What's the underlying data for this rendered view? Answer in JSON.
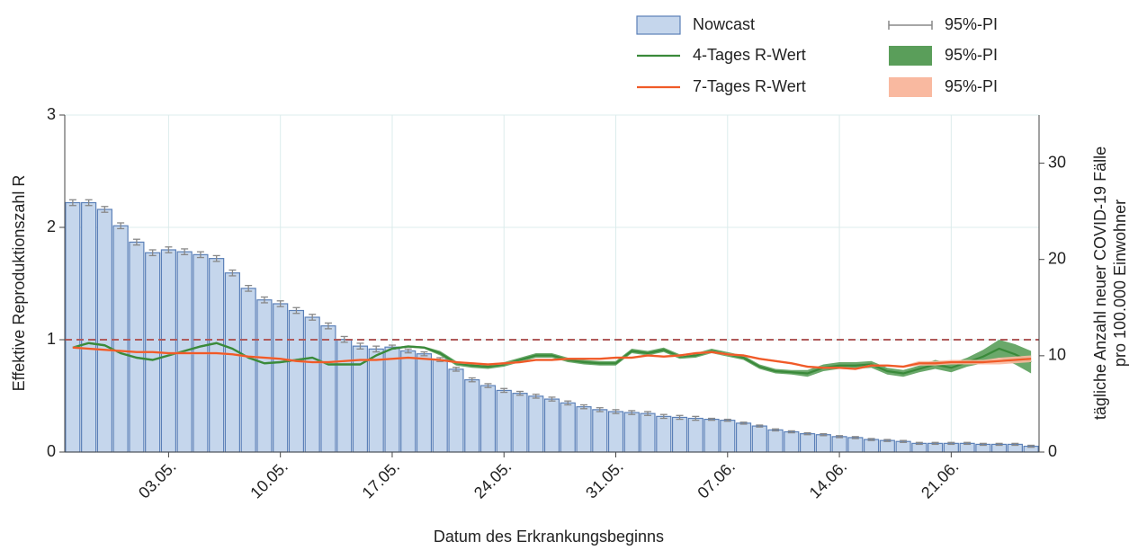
{
  "chart_data": {
    "type": "bar",
    "xlabel": "Datum des Erkrankungsbeginns",
    "ylabel": "Effektive Reproduktionszahl R",
    "y2label": [
      "tägliche Anzahl neuer COVID-19 Fälle",
      "pro 100.000 Einwohner"
    ],
    "categories": [
      null,
      null,
      null,
      null,
      null,
      null,
      "03.05.",
      null,
      null,
      null,
      null,
      null,
      null,
      "10.05.",
      null,
      null,
      null,
      null,
      null,
      null,
      "17.05.",
      null,
      null,
      null,
      null,
      null,
      null,
      "24.05.",
      null,
      null,
      null,
      null,
      null,
      null,
      "31.05.",
      null,
      null,
      null,
      null,
      null,
      null,
      "07.06.",
      null,
      null,
      null,
      null,
      null,
      null,
      "14.06.",
      null,
      null,
      null,
      null,
      null,
      null,
      "21.06.",
      null,
      null,
      null,
      null,
      null
    ],
    "ylim": [
      0,
      3
    ],
    "yticks": [
      0,
      1,
      2,
      3
    ],
    "y2lim": [
      0,
      35
    ],
    "y2ticks": [
      0,
      10,
      20,
      30
    ],
    "grid": true,
    "hline": {
      "value": 1,
      "color": "#b05a5a"
    },
    "series": [
      {
        "name": "Nowcast",
        "type": "bar",
        "axis": "y2",
        "color": "#c5d6ec",
        "edge": "#5b80b8",
        "values": [
          25.9,
          25.9,
          25.2,
          23.5,
          21.8,
          20.7,
          21.0,
          20.8,
          20.5,
          20.1,
          18.6,
          17.0,
          15.8,
          15.4,
          14.7,
          14.0,
          13.1,
          11.7,
          11.0,
          10.7,
          10.9,
          10.5,
          10.2,
          9.6,
          8.6,
          7.5,
          6.9,
          6.4,
          6.1,
          5.8,
          5.5,
          5.1,
          4.7,
          4.4,
          4.2,
          4.1,
          4.0,
          3.7,
          3.6,
          3.5,
          3.4,
          3.3,
          3.0,
          2.7,
          2.3,
          2.1,
          1.9,
          1.8,
          1.6,
          1.5,
          1.3,
          1.2,
          1.1,
          0.9,
          0.9,
          0.9,
          0.9,
          0.8,
          0.8,
          0.8,
          0.6
        ],
        "errors": [
          0.3,
          0.3,
          0.3,
          0.3,
          0.3,
          0.3,
          0.3,
          0.3,
          0.3,
          0.3,
          0.3,
          0.3,
          0.3,
          0.3,
          0.3,
          0.3,
          0.3,
          0.3,
          0.3,
          0.3,
          0.2,
          0.2,
          0.2,
          0.2,
          0.2,
          0.2,
          0.2,
          0.2,
          0.2,
          0.2,
          0.2,
          0.2,
          0.2,
          0.2,
          0.2,
          0.2,
          0.2,
          0.2,
          0.2,
          0.2,
          0.1,
          0.1,
          0.1,
          0.1,
          0.1,
          0.1,
          0.1,
          0.1,
          0.1,
          0.1,
          0.1,
          0.1,
          0.1,
          0.1,
          0.1,
          0.1,
          0.1,
          0.1,
          0.1,
          0.1,
          0.1
        ],
        "error_name": "95%-PI",
        "error_color": "#888888"
      },
      {
        "name": "4-Tages R-Wert",
        "type": "line",
        "color": "#3a8a3a",
        "values": [
          0.93,
          0.97,
          0.95,
          0.88,
          0.84,
          0.82,
          0.86,
          0.9,
          0.94,
          0.97,
          0.92,
          0.84,
          0.79,
          0.8,
          0.82,
          0.84,
          0.78,
          0.78,
          0.78,
          0.86,
          0.92,
          0.94,
          0.93,
          0.88,
          0.79,
          0.77,
          0.76,
          0.78,
          0.82,
          0.86,
          0.86,
          0.82,
          0.8,
          0.79,
          0.79,
          0.9,
          0.88,
          0.91,
          0.85,
          0.86,
          0.9,
          0.87,
          0.84,
          0.76,
          0.72,
          0.71,
          0.7,
          0.75,
          0.77,
          0.77,
          0.78,
          0.72,
          0.7,
          0.74,
          0.78,
          0.75,
          0.8,
          0.85,
          0.92,
          0.87,
          0.8
        ],
        "pi": [
          0.01,
          0.01,
          0.01,
          0.01,
          0.01,
          0.01,
          0.01,
          0.01,
          0.01,
          0.01,
          0.01,
          0.01,
          0.01,
          0.01,
          0.01,
          0.01,
          0.01,
          0.01,
          0.01,
          0.01,
          0.01,
          0.01,
          0.01,
          0.02,
          0.02,
          0.02,
          0.02,
          0.02,
          0.02,
          0.02,
          0.02,
          0.02,
          0.02,
          0.02,
          0.02,
          0.02,
          0.02,
          0.02,
          0.02,
          0.02,
          0.02,
          0.02,
          0.02,
          0.02,
          0.02,
          0.02,
          0.03,
          0.03,
          0.03,
          0.03,
          0.03,
          0.03,
          0.03,
          0.03,
          0.04,
          0.04,
          0.04,
          0.06,
          0.08,
          0.09,
          0.1
        ],
        "pi_name": "95%-PI",
        "pi_color": "#5a9e5a"
      },
      {
        "name": "7-Tages R-Wert",
        "type": "line",
        "color": "#f05a28",
        "values": [
          0.93,
          0.92,
          0.91,
          0.9,
          0.89,
          0.89,
          0.88,
          0.88,
          0.88,
          0.88,
          0.87,
          0.85,
          0.84,
          0.83,
          0.81,
          0.8,
          0.8,
          0.81,
          0.82,
          0.82,
          0.83,
          0.84,
          0.83,
          0.82,
          0.8,
          0.79,
          0.78,
          0.79,
          0.8,
          0.82,
          0.82,
          0.83,
          0.83,
          0.83,
          0.84,
          0.84,
          0.86,
          0.85,
          0.86,
          0.88,
          0.89,
          0.87,
          0.86,
          0.83,
          0.81,
          0.79,
          0.76,
          0.75,
          0.75,
          0.74,
          0.77,
          0.77,
          0.76,
          0.79,
          0.79,
          0.8,
          0.8,
          0.8,
          0.81,
          0.82,
          0.83
        ],
        "pi": [
          0.01,
          0.01,
          0.01,
          0.01,
          0.01,
          0.01,
          0.01,
          0.01,
          0.01,
          0.01,
          0.01,
          0.01,
          0.01,
          0.01,
          0.01,
          0.01,
          0.01,
          0.01,
          0.01,
          0.01,
          0.01,
          0.01,
          0.01,
          0.01,
          0.01,
          0.01,
          0.01,
          0.01,
          0.01,
          0.01,
          0.01,
          0.01,
          0.01,
          0.01,
          0.01,
          0.01,
          0.01,
          0.01,
          0.01,
          0.01,
          0.01,
          0.01,
          0.01,
          0.01,
          0.01,
          0.01,
          0.01,
          0.01,
          0.01,
          0.01,
          0.01,
          0.01,
          0.01,
          0.02,
          0.02,
          0.02,
          0.02,
          0.02,
          0.03,
          0.03,
          0.03
        ],
        "pi_name": "95%-PI",
        "pi_color": "#f9b9a0"
      }
    ]
  }
}
